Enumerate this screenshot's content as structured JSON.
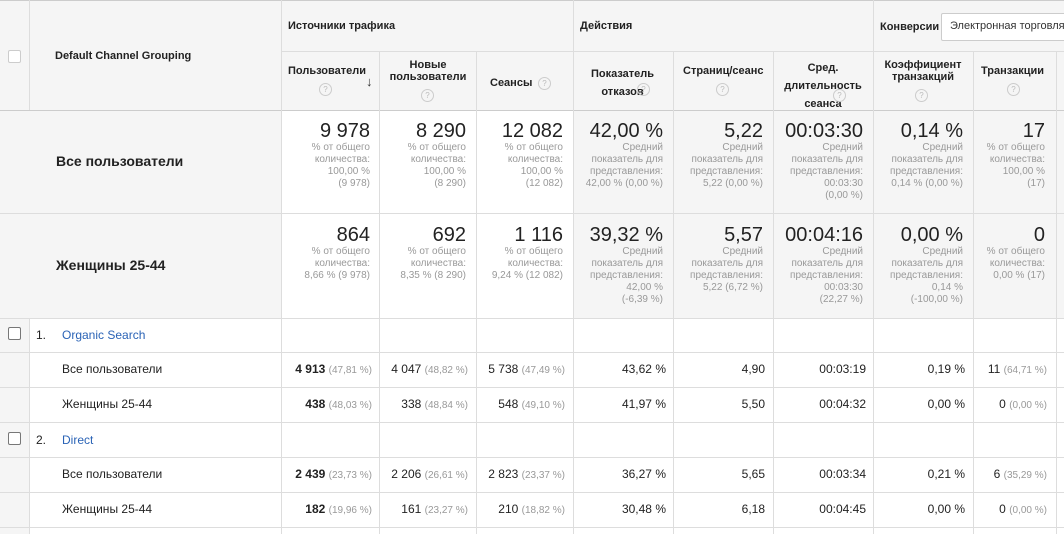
{
  "header": {
    "dimension": "Default Channel Grouping",
    "group_traffic": "Источники трафика",
    "group_actions": "Действия",
    "group_conversions": "Конверсии",
    "conversion_select": "Электронная торговля",
    "help_glyph": "?",
    "sort_glyph": "↓",
    "columns": [
      "Пользователи",
      "Новые пользователи",
      "Сеансы",
      "Показатель отказов",
      "Страниц/сеанс",
      "Сред. длительность сеанса",
      "Коэффициент транзакций",
      "Транзакции"
    ]
  },
  "summary": [
    {
      "label": "Все пользователи",
      "cols": [
        {
          "value": "9 978",
          "sub": [
            "% от общего",
            "количества:",
            "100,00 %",
            "(9 978)"
          ]
        },
        {
          "value": "8 290",
          "sub": [
            "% от общего",
            "количества:",
            "100,00 %",
            "(8 290)"
          ]
        },
        {
          "value": "12 082",
          "sub": [
            "% от общего",
            "количества:",
            "100,00 %",
            "(12 082)"
          ]
        },
        {
          "value": "42,00 %",
          "sub": [
            "Средний",
            "показатель для",
            "представления:",
            "42,00 % (0,00 %)"
          ]
        },
        {
          "value": "5,22",
          "sub": [
            "Средний",
            "показатель для",
            "представления:",
            "5,22 (0,00 %)"
          ]
        },
        {
          "value": "00:03:30",
          "sub": [
            "Средний",
            "показатель для",
            "представления:",
            "00:03:30",
            "(0,00 %)"
          ]
        },
        {
          "value": "0,14 %",
          "sub": [
            "Средний",
            "показатель для",
            "представления:",
            "0,14 % (0,00 %)"
          ]
        },
        {
          "value": "17",
          "sub": [
            "% от общего",
            "количества:",
            "100,00 %",
            "(17)"
          ]
        }
      ]
    },
    {
      "label": "Женщины 25-44",
      "cols": [
        {
          "value": "864",
          "sub": [
            "% от общего",
            "количества:",
            "8,66 % (9 978)"
          ]
        },
        {
          "value": "692",
          "sub": [
            "% от общего",
            "количества:",
            "8,35 % (8 290)"
          ]
        },
        {
          "value": "1 116",
          "sub": [
            "% от общего",
            "количества:",
            "9,24 % (12 082)"
          ]
        },
        {
          "value": "39,32 %",
          "sub": [
            "Средний",
            "показатель для",
            "представления:",
            "42,00 %",
            "(-6,39 %)"
          ]
        },
        {
          "value": "5,57",
          "sub": [
            "Средний",
            "показатель для",
            "представления:",
            "5,22 (6,72 %)"
          ]
        },
        {
          "value": "00:04:16",
          "sub": [
            "Средний",
            "показатель для",
            "представления:",
            "00:03:30",
            "(22,27 %)"
          ]
        },
        {
          "value": "0,00 %",
          "sub": [
            "Средний",
            "показатель для",
            "представления:",
            "0,14 %",
            "(-100,00 %)"
          ]
        },
        {
          "value": "0",
          "sub": [
            "% от общего",
            "количества:",
            "0,00 % (17)"
          ]
        }
      ]
    }
  ],
  "groups": [
    {
      "index": "1.",
      "name": "Organic Search",
      "rows": [
        {
          "label": "Все пользователи",
          "users": "4 913",
          "users_pct": "(47,81 %)",
          "new_users": "4 047",
          "new_users_pct": "(48,82 %)",
          "sessions": "5 738",
          "sessions_pct": "(47,49 %)",
          "bounce": "43,62 %",
          "pages": "4,90",
          "duration": "00:03:19",
          "conv_rate": "0,19 %",
          "transactions": "11",
          "transactions_pct": "(64,71 %)"
        },
        {
          "label": "Женщины 25-44",
          "users": "438",
          "users_pct": "(48,03 %)",
          "new_users": "338",
          "new_users_pct": "(48,84 %)",
          "sessions": "548",
          "sessions_pct": "(49,10 %)",
          "bounce": "41,97 %",
          "pages": "5,50",
          "duration": "00:04:32",
          "conv_rate": "0,00 %",
          "transactions": "0",
          "transactions_pct": "(0,00 %)"
        }
      ]
    },
    {
      "index": "2.",
      "name": "Direct",
      "rows": [
        {
          "label": "Все пользователи",
          "users": "2 439",
          "users_pct": "(23,73 %)",
          "new_users": "2 206",
          "new_users_pct": "(26,61 %)",
          "sessions": "2 823",
          "sessions_pct": "(23,37 %)",
          "bounce": "36,27 %",
          "pages": "5,65",
          "duration": "00:03:34",
          "conv_rate": "0,21 %",
          "transactions": "6",
          "transactions_pct": "(35,29 %)"
        },
        {
          "label": "Женщины 25-44",
          "users": "182",
          "users_pct": "(19,96 %)",
          "new_users": "161",
          "new_users_pct": "(23,27 %)",
          "sessions": "210",
          "sessions_pct": "(18,82 %)",
          "bounce": "30,48 %",
          "pages": "6,18",
          "duration": "00:04:45",
          "conv_rate": "0,00 %",
          "transactions": "0",
          "transactions_pct": "(0,00 %)"
        }
      ]
    }
  ]
}
